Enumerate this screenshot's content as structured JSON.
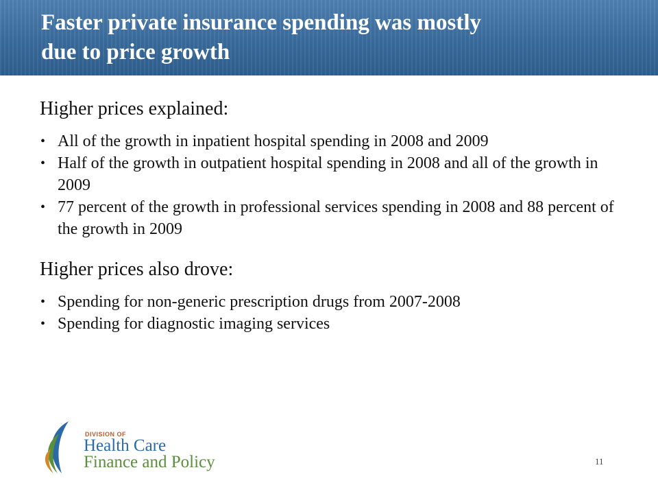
{
  "slide": {
    "title_line1": "Faster private insurance spending was mostly",
    "title_line2": "due to price growth",
    "section1": {
      "heading": "Higher prices explained:",
      "bullets": [
        "All of the growth in inpatient hospital spending in 2008 and 2009",
        "Half of the growth in outpatient hospital spending in 2008 and all of the growth in 2009",
        "77 percent of the growth in professional services spending in 2008 and 88 percent of the growth in 2009"
      ]
    },
    "section2": {
      "heading": "Higher prices also drove:",
      "bullets": [
        "Spending for non-generic prescription drugs from 2007-2008",
        "Spending for diagnostic imaging services"
      ]
    },
    "bullet_glyph": "•",
    "page_number": "11"
  },
  "logo": {
    "small_text": "DIVISION OF",
    "line1": "Health Care",
    "line2": "Finance and Policy",
    "colors": {
      "blue": "#2b6aa6",
      "green": "#5a8f3c",
      "orange": "#d08a2a",
      "red": "#c25b2c"
    }
  },
  "theme": {
    "header_blue": "#3a6b9c"
  }
}
